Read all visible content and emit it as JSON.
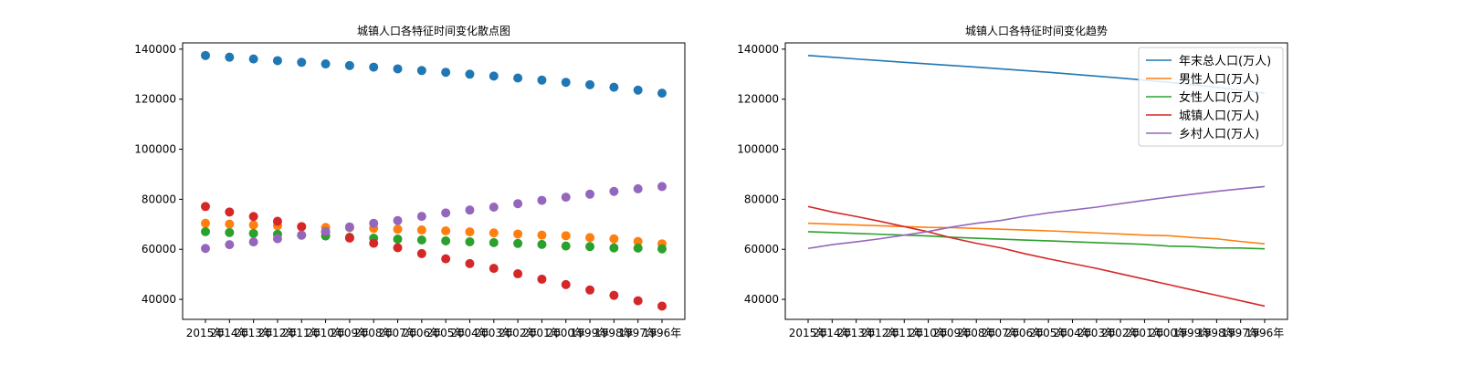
{
  "chart_data": [
    {
      "type": "scatter",
      "title": "城镇人口各特征时间变化散点图",
      "categories": [
        "2015年",
        "2014年",
        "2013年",
        "2012年",
        "2011年",
        "2010年",
        "2009年",
        "2008年",
        "2007年",
        "2006年",
        "2005年",
        "2004年",
        "2003年",
        "2002年",
        "2001年",
        "2000年",
        "1999年",
        "1998年",
        "1997年",
        "1996年"
      ],
      "ylim": [
        32000,
        142500
      ],
      "yticks": [
        40000,
        60000,
        80000,
        100000,
        120000,
        140000
      ],
      "grid": false,
      "series": [
        {
          "color": "#1f77b4",
          "values": [
            137462,
            136782,
            136072,
            135404,
            134735,
            134091,
            133450,
            132802,
            132129,
            131448,
            130756,
            129988,
            129227,
            128453,
            127627,
            126743,
            125786,
            124761,
            123626,
            122389
          ]
        },
        {
          "color": "#ff7f0e",
          "values": [
            70414,
            70079,
            69728,
            69395,
            69068,
            68748,
            68647,
            68357,
            68048,
            67728,
            67375,
            66976,
            66556,
            66115,
            65672,
            65437,
            64692,
            64189,
            63131,
            62200
          ]
        },
        {
          "color": "#2ca02c",
          "values": [
            67048,
            66703,
            66344,
            66009,
            65667,
            65343,
            64803,
            64445,
            64081,
            63720,
            63381,
            63012,
            62671,
            62338,
            61955,
            61306,
            61094,
            60572,
            60495,
            60189
          ]
        },
        {
          "color": "#d62728",
          "values": [
            77116,
            74916,
            73111,
            71182,
            69079,
            66978,
            64512,
            62403,
            60633,
            58288,
            56212,
            54283,
            52376,
            50212,
            48064,
            45906,
            43748,
            41608,
            39449,
            37304
          ]
        },
        {
          "color": "#9467bd",
          "values": [
            60346,
            61866,
            62961,
            64222,
            65656,
            67113,
            68938,
            70399,
            71496,
            73160,
            74544,
            75705,
            76851,
            78241,
            79563,
            80837,
            82038,
            83153,
            84177,
            85085
          ]
        }
      ]
    },
    {
      "type": "line",
      "title": "城镇人口各特征时间变化趋势",
      "categories": [
        "2015年",
        "2014年",
        "2013年",
        "2012年",
        "2011年",
        "2010年",
        "2009年",
        "2008年",
        "2007年",
        "2006年",
        "2005年",
        "2004年",
        "2003年",
        "2002年",
        "2001年",
        "2000年",
        "1999年",
        "1998年",
        "1997年",
        "1996年"
      ],
      "ylim": [
        32000,
        142500
      ],
      "yticks": [
        40000,
        60000,
        80000,
        100000,
        120000,
        140000
      ],
      "grid": false,
      "legend_position": "top-right",
      "series": [
        {
          "name": "年末总人口(万人)",
          "color": "#1f77b4",
          "values": [
            137462,
            136782,
            136072,
            135404,
            134735,
            134091,
            133450,
            132802,
            132129,
            131448,
            130756,
            129988,
            129227,
            128453,
            127627,
            126743,
            125786,
            124761,
            123626,
            122389
          ]
        },
        {
          "name": "男性人口(万人)",
          "color": "#ff7f0e",
          "values": [
            70414,
            70079,
            69728,
            69395,
            69068,
            68748,
            68647,
            68357,
            68048,
            67728,
            67375,
            66976,
            66556,
            66115,
            65672,
            65437,
            64692,
            64189,
            63131,
            62200
          ]
        },
        {
          "name": "女性人口(万人)",
          "color": "#2ca02c",
          "values": [
            67048,
            66703,
            66344,
            66009,
            65667,
            65343,
            64803,
            64445,
            64081,
            63720,
            63381,
            63012,
            62671,
            62338,
            61955,
            61306,
            61094,
            60572,
            60495,
            60189
          ]
        },
        {
          "name": "城镇人口(万人)",
          "color": "#d62728",
          "values": [
            77116,
            74916,
            73111,
            71182,
            69079,
            66978,
            64512,
            62403,
            60633,
            58288,
            56212,
            54283,
            52376,
            50212,
            48064,
            45906,
            43748,
            41608,
            39449,
            37304
          ]
        },
        {
          "name": "乡村人口(万人)",
          "color": "#9467bd",
          "values": [
            60346,
            61866,
            62961,
            64222,
            65656,
            67113,
            68938,
            70399,
            71496,
            73160,
            74544,
            75705,
            76851,
            78241,
            79563,
            80837,
            82038,
            83153,
            84177,
            85085
          ]
        }
      ]
    }
  ]
}
